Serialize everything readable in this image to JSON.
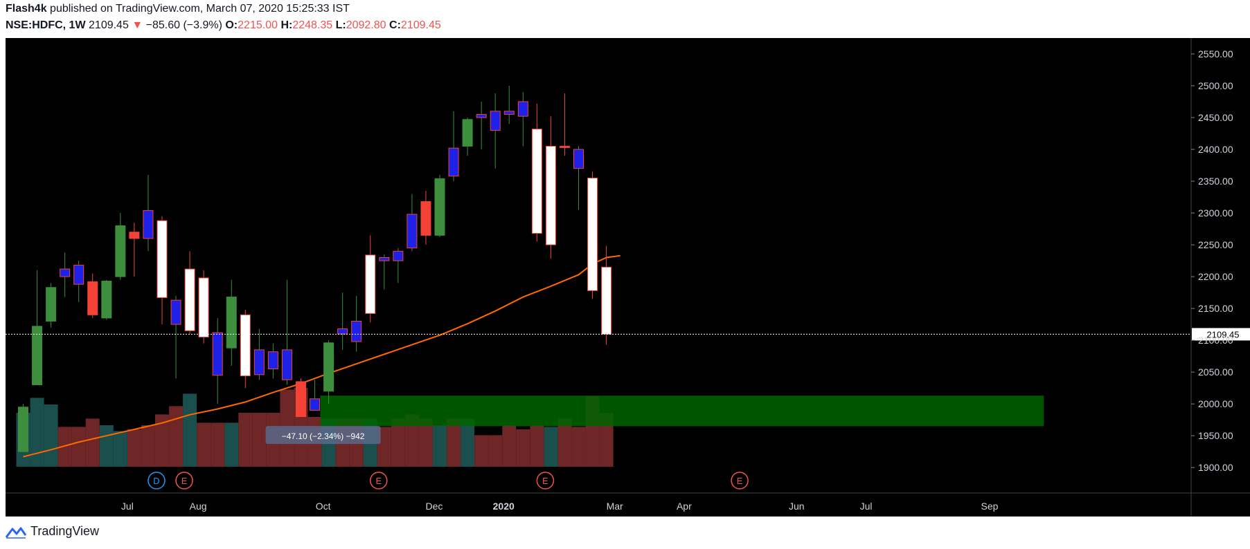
{
  "header": {
    "author": "Flash4k",
    "published": "published on TradingView.com, March 07, 2020 15:25:33 IST",
    "symbol": "NSE:HDFC, 1W",
    "last": "2109.45",
    "change_arrow": "▼",
    "change": "−85.60 (−3.9%)",
    "o_label": "O:",
    "o": "2215.00",
    "h_label": "H:",
    "h": "2248.35",
    "l_label": "L:",
    "l": "2092.80",
    "c_label": "C:",
    "c": "2109.45"
  },
  "footer": {
    "brand": "TradingView",
    "icon": "tradingview-logo-icon"
  },
  "colors": {
    "background": "#000000",
    "up_green": "#3d8f3d",
    "up_white": "#ffffff",
    "down_blue": "#1e22e6",
    "down_red": "#f44336",
    "ma_line": "#ff6a00",
    "zone": "#006400",
    "vol_up": "#1d5855",
    "vol_down": "#7a2a2a"
  },
  "chart_data": {
    "type": "candlestick",
    "ylim": [
      1860,
      2575
    ],
    "price_ticks": [
      "2550.00",
      "2500.00",
      "2450.00",
      "2400.00",
      "2350.00",
      "2300.00",
      "2250.00",
      "2200.00",
      "2150.00",
      "2100.00",
      "2050.00",
      "2000.00",
      "1950.00",
      "1900.00"
    ],
    "x_ticks": [
      {
        "label": "Jul",
        "index": 7.5
      },
      {
        "label": "Aug",
        "index": 12.6
      },
      {
        "label": "Oct",
        "index": 21.6
      },
      {
        "label": "Dec",
        "index": 29.6
      },
      {
        "label": "2020",
        "index": 34.6
      },
      {
        "label": "Mar",
        "index": 42.6
      },
      {
        "label": "Apr",
        "index": 47.6
      },
      {
        "label": "Jun",
        "index": 55.7
      },
      {
        "label": "Jul",
        "index": 60.7
      },
      {
        "label": "Sep",
        "index": 69.6
      }
    ],
    "last_price": {
      "value": 2109.45,
      "label": "2109.45"
    },
    "candles": [
      {
        "o": 1925,
        "h": 2000,
        "l": 1925,
        "c": 1995,
        "color": "green",
        "vol": 0.65
      },
      {
        "o": 2030,
        "h": 2210,
        "l": 2030,
        "c": 2122,
        "color": "green",
        "vol": 0.83
      },
      {
        "o": 2130,
        "h": 2190,
        "l": 2120,
        "c": 2183,
        "color": "green",
        "vol": 0.75
      },
      {
        "o": 2212,
        "h": 2238,
        "l": 2168,
        "c": 2200,
        "color": "blue",
        "vol": 0.48
      },
      {
        "o": 2218,
        "h": 2225,
        "l": 2160,
        "c": 2188,
        "color": "blue",
        "vol": 0.48
      },
      {
        "o": 2192,
        "h": 2205,
        "l": 2135,
        "c": 2140,
        "color": "red",
        "vol": 0.58
      },
      {
        "o": 2135,
        "h": 2195,
        "l": 2132,
        "c": 2193,
        "color": "green",
        "vol": 0.5
      },
      {
        "o": 2200,
        "h": 2300,
        "l": 2195,
        "c": 2280,
        "color": "green",
        "vol": 0.43
      },
      {
        "o": 2270,
        "h": 2285,
        "l": 2200,
        "c": 2260,
        "color": "red",
        "vol": 0.45
      },
      {
        "o": 2304,
        "h": 2360,
        "l": 2240,
        "c": 2260,
        "color": "blue",
        "vol": 0.5
      },
      {
        "o": 2288,
        "h": 2295,
        "l": 2125,
        "c": 2167,
        "color": "white",
        "vol": 0.63
      },
      {
        "o": 2163,
        "h": 2170,
        "l": 2040,
        "c": 2125,
        "color": "blue",
        "vol": 0.73
      },
      {
        "o": 2115,
        "h": 2240,
        "l": 2110,
        "c": 2212,
        "color": "white",
        "vol": 0.88
      },
      {
        "o": 2198,
        "h": 2210,
        "l": 2095,
        "c": 2105,
        "color": "white",
        "vol": 0.53
      },
      {
        "o": 2112,
        "h": 2135,
        "l": 2000,
        "c": 2045,
        "color": "blue",
        "vol": 0.53
      },
      {
        "o": 2088,
        "h": 2195,
        "l": 2060,
        "c": 2168,
        "color": "green",
        "vol": 0.53
      },
      {
        "o": 2140,
        "h": 2148,
        "l": 2025,
        "c": 2044,
        "color": "white",
        "vol": 0.65
      },
      {
        "o": 2085,
        "h": 2118,
        "l": 2038,
        "c": 2046,
        "color": "blue",
        "vol": 0.65
      },
      {
        "o": 2082,
        "h": 2095,
        "l": 2040,
        "c": 2055,
        "color": "blue",
        "vol": 0.65
      },
      {
        "o": 2085,
        "h": 2195,
        "l": 2030,
        "c": 2038,
        "color": "blue",
        "vol": 0.93
      },
      {
        "o": 2035,
        "h": 2040,
        "l": 1980,
        "c": 1980,
        "color": "red",
        "vol": 0.95
      },
      {
        "o": 2008,
        "h": 2038,
        "l": 1990,
        "c": 1990,
        "color": "blue",
        "vol": 0.6
      },
      {
        "o": 2020,
        "h": 2100,
        "l": 2000,
        "c": 2096,
        "color": "green",
        "vol": 0.58
      },
      {
        "o": 2118,
        "h": 2175,
        "l": 2085,
        "c": 2110,
        "color": "blue",
        "vol": 0.58
      },
      {
        "o": 2130,
        "h": 2170,
        "l": 2082,
        "c": 2098,
        "color": "blue",
        "vol": 0.58
      },
      {
        "o": 2142,
        "h": 2265,
        "l": 2128,
        "c": 2234,
        "color": "white",
        "vol": 0.58
      },
      {
        "o": 2230,
        "h": 2235,
        "l": 2180,
        "c": 2225,
        "color": "blue",
        "vol": 0.48
      },
      {
        "o": 2240,
        "h": 2245,
        "l": 2190,
        "c": 2225,
        "color": "blue",
        "vol": 0.58
      },
      {
        "o": 2298,
        "h": 2330,
        "l": 2240,
        "c": 2245,
        "color": "blue",
        "vol": 0.63
      },
      {
        "o": 2318,
        "h": 2335,
        "l": 2250,
        "c": 2265,
        "color": "red",
        "vol": 0.58
      },
      {
        "o": 2265,
        "h": 2360,
        "l": 2262,
        "c": 2354,
        "color": "green",
        "vol": 0.5
      },
      {
        "o": 2402,
        "h": 2460,
        "l": 2350,
        "c": 2358,
        "color": "blue",
        "vol": 0.58
      },
      {
        "o": 2405,
        "h": 2450,
        "l": 2390,
        "c": 2447,
        "color": "green",
        "vol": 0.58
      },
      {
        "o": 2455,
        "h": 2475,
        "l": 2400,
        "c": 2450,
        "color": "blue",
        "vol": 0.38
      },
      {
        "o": 2460,
        "h": 2488,
        "l": 2370,
        "c": 2430,
        "color": "blue",
        "vol": 0.38
      },
      {
        "o": 2460,
        "h": 2500,
        "l": 2440,
        "c": 2455,
        "color": "blue",
        "vol": 0.5
      },
      {
        "o": 2475,
        "h": 2490,
        "l": 2405,
        "c": 2452,
        "color": "blue",
        "vol": 0.45
      },
      {
        "o": 2432,
        "h": 2472,
        "l": 2255,
        "c": 2268,
        "color": "white",
        "vol": 0.5
      },
      {
        "o": 2250,
        "h": 2452,
        "l": 2228,
        "c": 2405,
        "color": "white",
        "vol": 0.48
      },
      {
        "o": 2405,
        "h": 2488,
        "l": 2390,
        "c": 2403,
        "color": "red",
        "vol": 0.58
      },
      {
        "o": 2400,
        "h": 2405,
        "l": 2305,
        "c": 2370,
        "color": "blue",
        "vol": 0.48
      },
      {
        "o": 2355,
        "h": 2365,
        "l": 2165,
        "c": 2178,
        "color": "white",
        "vol": 0.85
      },
      {
        "o": 2215,
        "h": 2248.35,
        "l": 2092.8,
        "c": 2109.45,
        "color": "white",
        "vol": 0.65
      }
    ],
    "moving_average": [
      {
        "i": 0,
        "v": 1917
      },
      {
        "i": 2,
        "v": 1928
      },
      {
        "i": 4,
        "v": 1940
      },
      {
        "i": 6,
        "v": 1950
      },
      {
        "i": 8,
        "v": 1960
      },
      {
        "i": 10,
        "v": 1970
      },
      {
        "i": 12,
        "v": 1983
      },
      {
        "i": 14,
        "v": 1992
      },
      {
        "i": 16,
        "v": 2003
      },
      {
        "i": 18,
        "v": 2018
      },
      {
        "i": 20,
        "v": 2032
      },
      {
        "i": 22,
        "v": 2048
      },
      {
        "i": 24,
        "v": 2063
      },
      {
        "i": 26,
        "v": 2078
      },
      {
        "i": 28,
        "v": 2093
      },
      {
        "i": 30,
        "v": 2108
      },
      {
        "i": 32,
        "v": 2126
      },
      {
        "i": 34,
        "v": 2146
      },
      {
        "i": 36,
        "v": 2168
      },
      {
        "i": 38,
        "v": 2185
      },
      {
        "i": 40,
        "v": 2203
      },
      {
        "i": 41,
        "v": 2220
      },
      {
        "i": 42,
        "v": 2230
      },
      {
        "i": 43,
        "v": 2233
      }
    ],
    "zone": {
      "from_index": 21.4,
      "to_index": 73.5,
      "low": 1965,
      "high": 2013
    },
    "events": [
      {
        "label": "D",
        "index": 9.6,
        "color": "#2196f3"
      },
      {
        "label": "E",
        "index": 11.6,
        "color": "#ef5350"
      },
      {
        "label": "E",
        "index": 25.6,
        "color": "#ef5350"
      },
      {
        "label": "E",
        "index": 37.6,
        "color": "#ef5350"
      },
      {
        "label": "E",
        "index": 51.6,
        "color": "#ef5350"
      }
    ],
    "measure_label": {
      "text": "−47.10 (−2.34%) −942",
      "index": 21.6,
      "price": 1950
    }
  }
}
